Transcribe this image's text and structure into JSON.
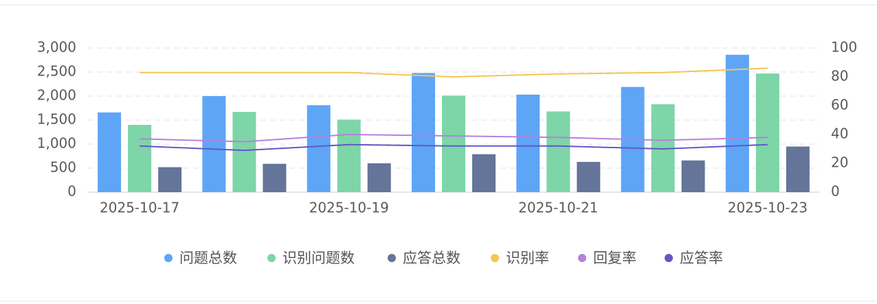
{
  "chart_data": {
    "type": "bar",
    "categories": [
      "2025-10-17",
      null,
      "2025-10-19",
      null,
      "2025-10-21",
      null,
      "2025-10-23"
    ],
    "series": [
      {
        "name": "问题总数",
        "type": "bar",
        "color": "#5ea5f6",
        "values": [
          1660,
          2000,
          1810,
          2480,
          2030,
          2190,
          2860
        ]
      },
      {
        "name": "识别问题数",
        "type": "bar",
        "color": "#7dd5a8",
        "values": [
          1400,
          1670,
          1510,
          2010,
          1680,
          1830,
          2470
        ]
      },
      {
        "name": "应答总数",
        "type": "bar",
        "color": "#647599",
        "values": [
          520,
          590,
          600,
          790,
          630,
          660,
          950
        ]
      },
      {
        "name": "识别率",
        "type": "line",
        "axis": "y2",
        "color": "#f5c74e",
        "values": [
          83,
          83,
          83,
          80,
          82,
          83,
          86
        ]
      },
      {
        "name": "回复率",
        "type": "line",
        "axis": "y2",
        "color": "#b580e0",
        "values": [
          37,
          35,
          40,
          39,
          38,
          36,
          38
        ]
      },
      {
        "name": "应答率",
        "type": "line",
        "axis": "y2",
        "color": "#6456c8",
        "values": [
          32,
          29,
          33,
          32,
          32,
          30,
          33
        ]
      }
    ],
    "ylim": [
      0,
      3000
    ],
    "yticks": [
      0,
      500,
      {
        "value": 1000,
        "label": "1,000"
      },
      {
        "value": 1500,
        "label": "1,500"
      },
      {
        "value": 2000,
        "label": "2,000"
      },
      {
        "value": 2500,
        "label": "2,500"
      },
      {
        "value": 3000,
        "label": "3,000"
      }
    ],
    "y2lim": [
      0,
      100
    ],
    "y2ticks": [
      0,
      20,
      40,
      60,
      80,
      100
    ],
    "grid": true,
    "legend": "bottom"
  }
}
